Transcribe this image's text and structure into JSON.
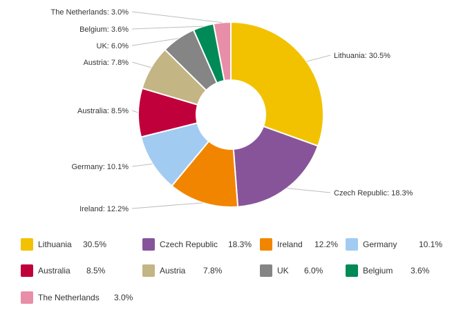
{
  "chart_data": {
    "type": "pie",
    "title": "",
    "donut": true,
    "legend_position": "bottom",
    "categories": [
      "Lithuania",
      "Czech Republic",
      "Ireland",
      "Germany",
      "Australia",
      "Austria",
      "UK",
      "Belgium",
      "The Netherlands"
    ],
    "values": [
      30.5,
      18.3,
      12.2,
      10.1,
      8.5,
      7.8,
      6.0,
      3.6,
      3.0
    ],
    "value_labels": [
      "30.5%",
      "18.3%",
      "12.2%",
      "10.1%",
      "8.5%",
      "7.8%",
      "6.0%",
      "3.6%",
      "3.0%"
    ],
    "slice_labels": [
      "Lithuania: 30.5%",
      "Czech Republic: 18.3%",
      "Ireland: 12.2%",
      "Germany: 10.1%",
      "Australia: 8.5%",
      "Austria: 7.8%",
      "UK: 6.0%",
      "Belgium: 3.6%",
      "The Netherlands: 3.0%"
    ],
    "colors": [
      "#f2c200",
      "#87549a",
      "#f28500",
      "#a2cbf2",
      "#c0003b",
      "#c3b584",
      "#858585",
      "#008a58",
      "#e88ea8"
    ]
  }
}
